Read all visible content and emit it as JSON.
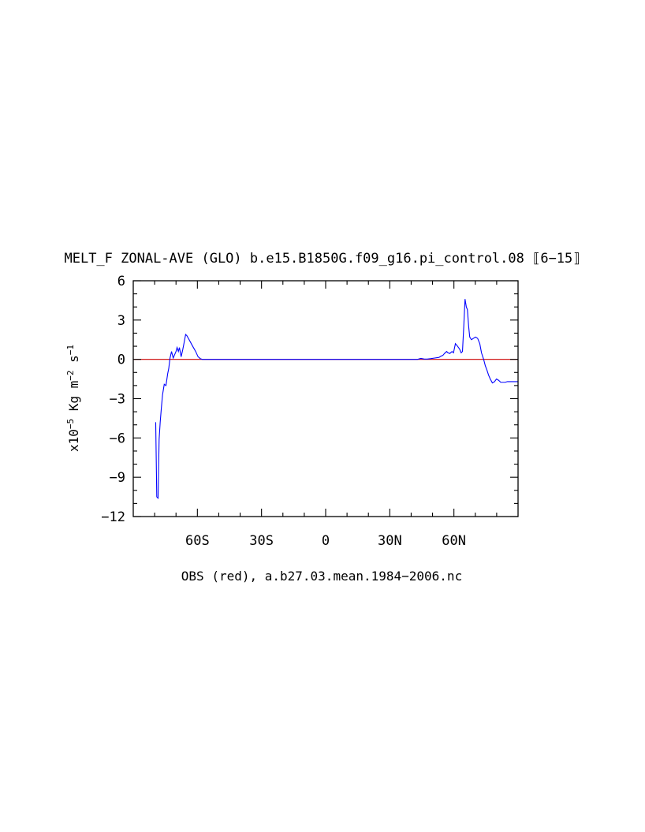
{
  "chart_data": {
    "type": "line",
    "title": "MELT_F ZONAL-AVE (GLO) b.e15.B1850G.f09_g16.pi_control.08 ⟦6−15⟧",
    "xlabel": "OBS (red), a.b27.03.mean.1984−2006.nc",
    "ylabel": {
      "prefix": "x10",
      "exp": "−5",
      "unit1": " Kg m",
      "exp2": "−2",
      "unit2": " s",
      "exp3": "−1"
    },
    "xlim": [
      -90,
      90
    ],
    "ylim": [
      -12,
      6
    ],
    "x_ticks": [
      {
        "value": -60,
        "label": "60S"
      },
      {
        "value": -30,
        "label": "30S"
      },
      {
        "value": 0,
        "label": "0"
      },
      {
        "value": 30,
        "label": "30N"
      },
      {
        "value": 60,
        "label": "60N"
      }
    ],
    "y_ticks": [
      {
        "value": 6,
        "label": "6"
      },
      {
        "value": 3,
        "label": "3"
      },
      {
        "value": 0,
        "label": "0"
      },
      {
        "value": -3,
        "label": "−3"
      },
      {
        "value": -6,
        "label": "−6"
      },
      {
        "value": -9,
        "label": "−9"
      },
      {
        "value": -12,
        "label": "−12"
      }
    ],
    "series": [
      {
        "color": "#0000ff",
        "x": [
          -79.5,
          -79.0,
          -78.4,
          -77.9,
          -77.4,
          -76.8,
          -76.3,
          -75.5,
          -74.7,
          -73.9,
          -73.4,
          -72.8,
          -72.1,
          -71.3,
          -70.8,
          -70.0,
          -69.5,
          -68.9,
          -68.4,
          -67.6,
          -66.9,
          -66.3,
          -65.5,
          -64.9,
          -64.2,
          -63.2,
          -62.2,
          -60.8,
          -59.7,
          -58.6,
          -57.7,
          -57.0,
          -55.0,
          -40,
          -20,
          0,
          20,
          40,
          43,
          44.5,
          46,
          47.5,
          49,
          51,
          53,
          54,
          54.8,
          55.6,
          56.6,
          57.2,
          58.1,
          59.1,
          59.8,
          60.7,
          61.7,
          62.6,
          63.4,
          64.0,
          64.6,
          65.2,
          65.8,
          66.3,
          66.9,
          67.4,
          68.2,
          69.1,
          70.1,
          71.1,
          72.1,
          72.9,
          73.9,
          74.7,
          75.4,
          76.2,
          77.0,
          78.0,
          79.0,
          79.9,
          80.9,
          81.9,
          82.9,
          84.0,
          85.0,
          86.0,
          87.0,
          88.5,
          90.0
        ],
        "y": [
          -4.8,
          -10.5,
          -10.6,
          -6.1,
          -4.8,
          -3.6,
          -2.7,
          -1.9,
          -2.0,
          -1.1,
          -0.7,
          0.1,
          0.6,
          0.1,
          0.3,
          0.6,
          0.9,
          0.6,
          0.9,
          0.2,
          0.7,
          1.2,
          1.9,
          1.8,
          1.6,
          1.3,
          1.0,
          0.6,
          0.2,
          0.05,
          0.0,
          0.0,
          0.0,
          0.0,
          0.0,
          0.0,
          0.0,
          0.0,
          0.0,
          0.07,
          0.03,
          0.02,
          0.05,
          0.1,
          0.15,
          0.25,
          0.3,
          0.45,
          0.6,
          0.5,
          0.45,
          0.6,
          0.5,
          1.2,
          1.0,
          0.8,
          0.5,
          0.6,
          2.5,
          4.6,
          4.0,
          3.8,
          2.5,
          1.7,
          1.5,
          1.6,
          1.7,
          1.6,
          1.2,
          0.5,
          0.0,
          -0.5,
          -0.8,
          -1.2,
          -1.5,
          -1.8,
          -1.7,
          -1.5,
          -1.6,
          -1.75,
          -1.75,
          -1.75,
          -1.7,
          -1.7,
          -1.7,
          -1.7,
          -1.7
        ]
      },
      {
        "color": "#cc0000",
        "x": [
          -90,
          90
        ],
        "y": [
          0,
          0
        ]
      }
    ]
  }
}
